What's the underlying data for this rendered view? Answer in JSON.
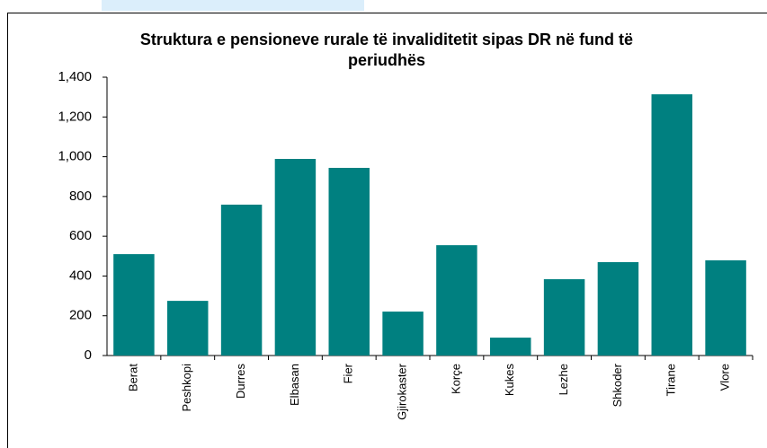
{
  "chart_data": {
    "type": "bar",
    "title": "Struktura e pensioneve rurale të invaliditetit sipas DR në fund të periudhës",
    "categories": [
      "Berat",
      "Peshkopi",
      "Durres",
      "Elbasan",
      "Fier",
      "Gjirokaster",
      "Korçe",
      "Kukes",
      "Lezhe",
      "Shkoder",
      "Tirane",
      "Vlore"
    ],
    "values": [
      510,
      275,
      759,
      989,
      944,
      221,
      555,
      90,
      384,
      470,
      1314,
      479
    ],
    "color": "#008080",
    "ylim": [
      0,
      1400
    ],
    "yticks": [
      0,
      200,
      400,
      600,
      800,
      {
        "value": 1000,
        "label": "1,000"
      },
      {
        "value": 1200,
        "label": "1,200"
      },
      {
        "value": 1400,
        "label": "1,400"
      }
    ],
    "grid": false
  }
}
